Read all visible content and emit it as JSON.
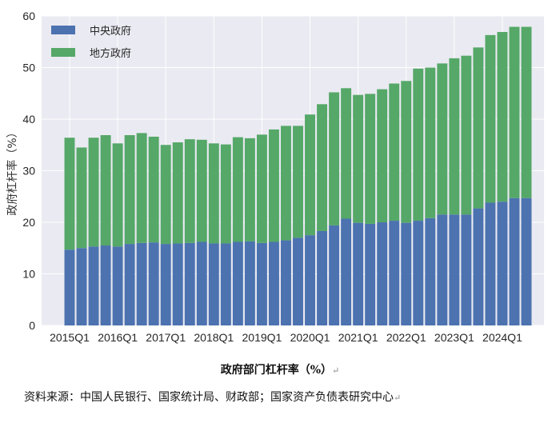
{
  "chart_data": {
    "type": "bar",
    "stacked": true,
    "ylabel": "政府杠杆率（%）",
    "ylim": [
      0,
      60
    ],
    "yticks": [
      0,
      10,
      20,
      30,
      40,
      50,
      60
    ],
    "grid": true,
    "legend_position": "top-left",
    "categories": [
      "2015Q1",
      "2015Q2",
      "2015Q3",
      "2015Q4",
      "2016Q1",
      "2016Q2",
      "2016Q3",
      "2016Q4",
      "2017Q1",
      "2017Q2",
      "2017Q3",
      "2017Q4",
      "2018Q1",
      "2018Q2",
      "2018Q3",
      "2018Q4",
      "2019Q1",
      "2019Q2",
      "2019Q3",
      "2019Q4",
      "2020Q1",
      "2020Q2",
      "2020Q3",
      "2020Q4",
      "2021Q1",
      "2021Q2",
      "2021Q3",
      "2021Q4",
      "2022Q1",
      "2022Q2",
      "2022Q3",
      "2022Q4",
      "2023Q1",
      "2023Q2",
      "2023Q3",
      "2023Q4",
      "2024Q1",
      "2024Q2",
      "2024Q3"
    ],
    "xtick_labels": [
      "2015Q1",
      "2016Q1",
      "2017Q1",
      "2018Q1",
      "2019Q1",
      "2020Q1",
      "2021Q1",
      "2022Q1",
      "2023Q1",
      "2024Q1"
    ],
    "series": [
      {
        "name": "中央政府",
        "color": "#4c72b0",
        "values": [
          14.7,
          15.0,
          15.3,
          15.5,
          15.3,
          15.8,
          16.0,
          16.1,
          15.8,
          15.9,
          16.0,
          16.2,
          15.9,
          15.9,
          16.2,
          16.3,
          16.0,
          16.2,
          16.5,
          17.0,
          17.5,
          18.3,
          19.4,
          20.7,
          19.9,
          19.7,
          20.0,
          20.3,
          19.9,
          20.3,
          20.8,
          21.5,
          21.5,
          21.5,
          22.7,
          23.8,
          24.0,
          24.7,
          24.7
        ]
      },
      {
        "name": "地方政府",
        "color": "#55a868",
        "values": [
          21.7,
          19.5,
          21.1,
          21.4,
          20.0,
          21.1,
          21.3,
          20.5,
          19.2,
          19.6,
          20.1,
          19.8,
          19.4,
          19.2,
          20.3,
          20.0,
          21.0,
          21.8,
          22.2,
          21.7,
          23.4,
          24.6,
          25.8,
          25.3,
          24.8,
          25.2,
          25.8,
          26.6,
          27.5,
          29.5,
          29.2,
          29.3,
          30.3,
          30.8,
          31.2,
          32.5,
          32.9,
          33.2,
          33.2
        ]
      }
    ]
  },
  "caption": "政府部门杠杆率（%）",
  "source": "资料来源：中国人民银行、国家统计局、财政部；国家资产负债表研究中心",
  "paragraph_mark": "↵"
}
